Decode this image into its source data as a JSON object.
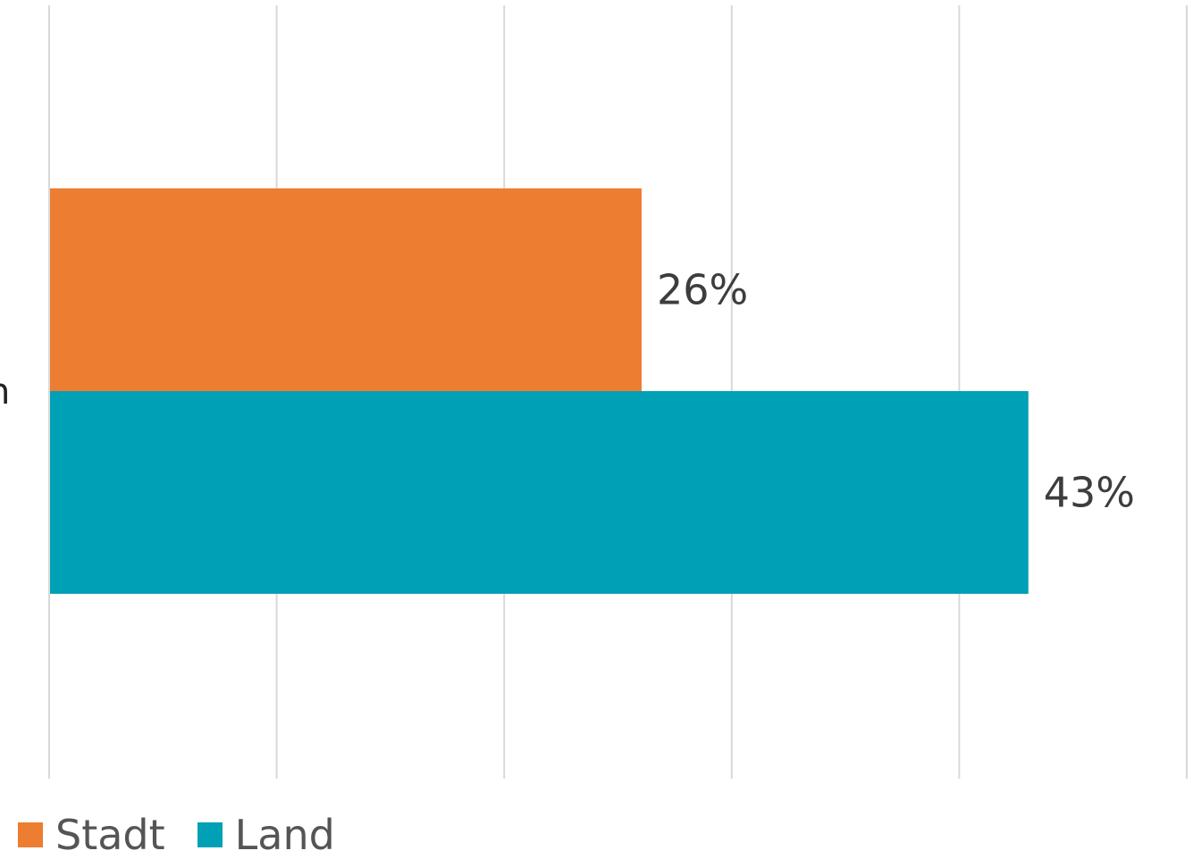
{
  "chart_data": {
    "type": "bar",
    "orientation": "horizontal",
    "categories": [
      "n"
    ],
    "series": [
      {
        "name": "Stadt",
        "values": [
          26
        ],
        "color": "#ED7D31",
        "data_labels": [
          "26%"
        ]
      },
      {
        "name": "Land",
        "values": [
          43
        ],
        "color": "#00A0B6",
        "data_labels": [
          "43%"
        ]
      }
    ],
    "xlim": [
      0,
      50
    ],
    "grid": true,
    "legend_position": "bottom-left",
    "title": "",
    "xlabel": "",
    "ylabel": ""
  }
}
